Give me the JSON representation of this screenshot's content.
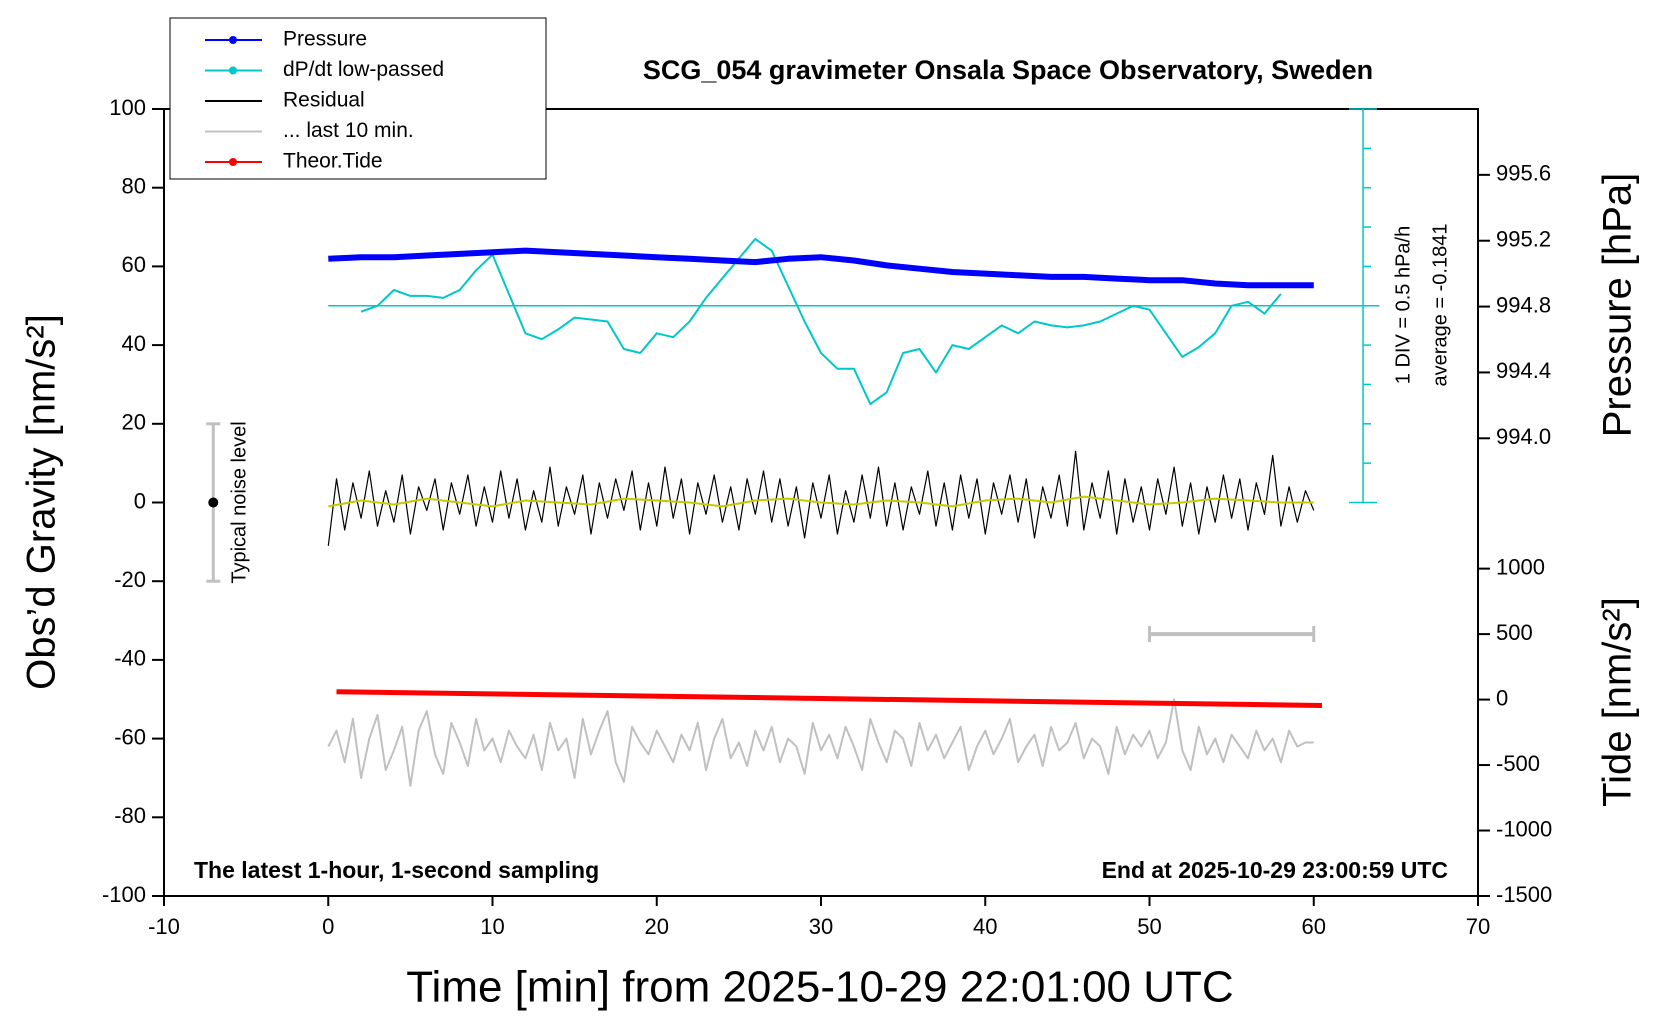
{
  "chart_data": {
    "type": "line",
    "title": "SCG_054 gravimeter Onsala Space Observatory, Sweden",
    "x_label": "Time [min] from 2025-10-29 22:01:00 UTC",
    "y_label": "Obs’d Gravity [nm/s²]",
    "y2_label": "Pressure [hPa]",
    "y3_label": "Tide [nm/s²]",
    "footer_left": "The latest 1-hour, 1-second sampling",
    "footer_right": "End at 2025-10-29 23:00:59 UTC",
    "xlim": [
      -10,
      70
    ],
    "xticks": [
      -10,
      0,
      10,
      20,
      30,
      40,
      50,
      60,
      70
    ],
    "ylim": [
      -100,
      100
    ],
    "yticks": [
      -100,
      -80,
      -60,
      -40,
      -20,
      0,
      20,
      40,
      60,
      80,
      100
    ],
    "y2lim": [
      991.22,
      996.0
    ],
    "y2ticks": [
      {
        "value": 994,
        "label": "994.0"
      },
      994.4,
      994.8,
      995.2,
      995.6
    ],
    "y3lim": [
      -1500,
      4510
    ],
    "y3ticks": [
      -1500,
      -1000,
      -500,
      0,
      500,
      1000
    ],
    "grid": false,
    "legend": "upper left",
    "x": [
      0,
      0.5,
      1,
      1.5,
      2,
      2.5,
      3,
      3.5,
      4,
      4.5,
      5,
      5.5,
      6,
      6.5,
      7,
      7.5,
      8,
      8.5,
      9,
      9.5,
      10,
      10.5,
      11,
      11.5,
      12,
      12.5,
      13,
      13.5,
      14,
      14.5,
      15,
      15.5,
      16,
      16.5,
      17,
      17.5,
      18,
      18.5,
      19,
      19.5,
      20,
      20.5,
      21,
      21.5,
      22,
      22.5,
      23,
      23.5,
      24,
      24.5,
      25,
      25.5,
      26,
      26.5,
      27,
      27.5,
      28,
      28.5,
      29,
      29.5,
      30,
      30.5,
      31,
      31.5,
      32,
      32.5,
      33,
      33.5,
      34,
      34.5,
      35,
      35.5,
      36,
      36.5,
      37,
      37.5,
      38,
      38.5,
      39,
      39.5,
      40,
      40.5,
      41,
      41.5,
      42,
      42.5,
      43,
      43.5,
      44,
      44.5,
      45,
      45.5,
      46,
      46.5,
      47,
      47.5,
      48,
      48.5,
      49,
      49.5,
      50,
      50.5,
      51,
      51.5,
      52,
      52.5,
      53,
      53.5,
      54,
      54.5,
      55,
      55.5,
      56,
      56.5,
      57,
      57.5,
      58,
      58.5,
      59,
      59.5,
      60
    ],
    "series": [
      {
        "name": "Pressure",
        "color": "#0000ff",
        "axis": "y2",
        "marker": true,
        "x": [
          0,
          2,
          4,
          6,
          8,
          10,
          12,
          14,
          16,
          18,
          20,
          22,
          24,
          26,
          28,
          30,
          32,
          34,
          36,
          38,
          40,
          42,
          44,
          46,
          48,
          50,
          52,
          54,
          56,
          58,
          60
        ],
        "values": [
          995.09,
          995.1,
          995.1,
          995.11,
          995.12,
          995.13,
          995.14,
          995.13,
          995.12,
          995.11,
          995.1,
          995.09,
          995.08,
          995.07,
          995.09,
          995.1,
          995.08,
          995.05,
          995.03,
          995.01,
          995.0,
          994.99,
          994.98,
          994.98,
          994.97,
          994.96,
          994.96,
          994.94,
          994.93,
          994.93,
          994.93
        ]
      },
      {
        "name": "dP/dt low-passed",
        "color": "#00c8c8",
        "axis": "y",
        "marker": true,
        "x": [
          2,
          3,
          4,
          5,
          6,
          7,
          8,
          9,
          10,
          11,
          12,
          13,
          14,
          15,
          16,
          17,
          18,
          19,
          20,
          21,
          22,
          23,
          24,
          25,
          26,
          27,
          28,
          29,
          30,
          31,
          32,
          33,
          34,
          35,
          36,
          37,
          38,
          39,
          40,
          41,
          42,
          43,
          44,
          45,
          46,
          47,
          48,
          49,
          50,
          51,
          52,
          53,
          54,
          55,
          56,
          57,
          58
        ],
        "values": [
          48.5,
          50,
          54,
          52.5,
          52.5,
          52,
          54,
          59,
          63,
          53,
          43,
          41.5,
          44,
          47,
          46.5,
          46,
          39,
          38,
          43,
          42,
          46,
          52,
          57,
          62,
          67,
          64,
          55,
          46,
          38,
          34,
          34,
          25,
          28,
          38,
          39,
          33,
          40,
          39,
          42,
          45,
          43,
          46,
          45,
          44.5,
          45,
          46,
          48,
          50,
          49,
          43,
          37,
          39.5,
          43,
          50,
          51,
          48,
          53
        ]
      },
      {
        "name": "Residual",
        "color": "#000000",
        "axis": "y",
        "marker": false,
        "values": [
          -11,
          6,
          -7,
          5,
          -4,
          8,
          -6,
          3,
          -5,
          7,
          -8,
          4,
          -2,
          6,
          -7,
          5,
          -3,
          7,
          -6,
          4,
          -5,
          8,
          -4,
          6,
          -7,
          3,
          -5,
          9,
          -6,
          4,
          -3,
          7,
          -8,
          5,
          -4,
          6,
          -2,
          8,
          -7,
          5,
          -6,
          9,
          -4,
          6,
          -8,
          5,
          -3,
          7,
          -5,
          4,
          -7,
          6,
          -3,
          8,
          -5,
          6,
          -6,
          4,
          -9,
          5,
          -4,
          7,
          -8,
          3,
          -5,
          7,
          -4,
          9,
          -6,
          5,
          -7,
          4,
          -3,
          8,
          -6,
          5,
          -7,
          7,
          -4,
          6,
          -8,
          5,
          -3,
          7,
          -5,
          6,
          -9,
          4,
          -4,
          7,
          -6,
          13,
          -7,
          5,
          -4,
          8,
          -8,
          6,
          -5,
          4,
          -7,
          6,
          -3,
          9,
          -6,
          5,
          -8,
          4,
          -5,
          7,
          -4,
          6,
          -7,
          5,
          -3,
          12,
          -6,
          4,
          -5,
          3,
          -2
        ]
      },
      {
        "name": "... last 10 min.",
        "color": "#c0c0c0",
        "axis": "y",
        "marker": false,
        "values": [
          -62,
          -58,
          -66,
          -55,
          -70,
          -60,
          -54,
          -68,
          -63,
          -57,
          -72,
          -58,
          -53,
          -64,
          -69,
          -56,
          -61,
          -67,
          -55,
          -63,
          -60,
          -66,
          -58,
          -62,
          -65,
          -59,
          -68,
          -56,
          -63,
          -60,
          -70,
          -55,
          -64,
          -58,
          -53,
          -66,
          -71,
          -57,
          -61,
          -64,
          -58,
          -62,
          -66,
          -59,
          -63,
          -56,
          -68,
          -60,
          -55,
          -65,
          -61,
          -67,
          -58,
          -63,
          -57,
          -66,
          -60,
          -62,
          -69,
          -56,
          -63,
          -59,
          -65,
          -57,
          -62,
          -68,
          -55,
          -61,
          -66,
          -58,
          -60,
          -67,
          -56,
          -63,
          -59,
          -65,
          -61,
          -57,
          -68,
          -62,
          -58,
          -64,
          -60,
          -55,
          -66,
          -62,
          -59,
          -67,
          -57,
          -63,
          -61,
          -56,
          -65,
          -60,
          -62,
          -69,
          -57,
          -64,
          -59,
          -62,
          -58,
          -65,
          -61,
          -50,
          -63,
          -68,
          -57,
          -64,
          -60,
          -66,
          -59,
          -62,
          -65,
          -58,
          -63,
          -60,
          -66,
          -58,
          -62,
          -61,
          -61
        ]
      },
      {
        "name": "Theor.Tide",
        "color": "#ff0000",
        "axis": "y3",
        "marker": true,
        "x": [
          0.5,
          60.5
        ],
        "values": [
          60,
          -45
        ]
      },
      {
        "color": "#c8c800",
        "axis": "y",
        "marker": false,
        "x": [
          0,
          2,
          4,
          6,
          8,
          10,
          12,
          14,
          16,
          18,
          20,
          22,
          24,
          26,
          28,
          30,
          32,
          34,
          36,
          38,
          40,
          42,
          44,
          46,
          48,
          50,
          52,
          54,
          56,
          58,
          60
        ],
        "values": [
          -1,
          0.5,
          -0.5,
          1,
          0,
          -1,
          0.5,
          0,
          -0.5,
          1,
          0.5,
          0,
          -1,
          0.5,
          1,
          0,
          -0.5,
          0.5,
          0,
          -1,
          0.5,
          1,
          0,
          1.5,
          0.5,
          -0.5,
          0,
          1,
          0.5,
          0,
          0
        ]
      }
    ],
    "dpdt_average_level": 50,
    "dpdt_scale": {
      "x": 63,
      "range": [
        0,
        100
      ],
      "ticks": [
        10,
        20,
        30,
        40,
        50,
        60,
        70,
        80,
        90
      ],
      "div_label": "1 DIV = 0.5 hPa/h",
      "average_label": "average = -0.1841"
    },
    "noise_level": {
      "x": -7,
      "range": [
        -20,
        20
      ],
      "center": 0,
      "label": "Typical noise level"
    },
    "last_10min_bar": {
      "x": [
        50,
        60
      ],
      "y": 500
    }
  }
}
